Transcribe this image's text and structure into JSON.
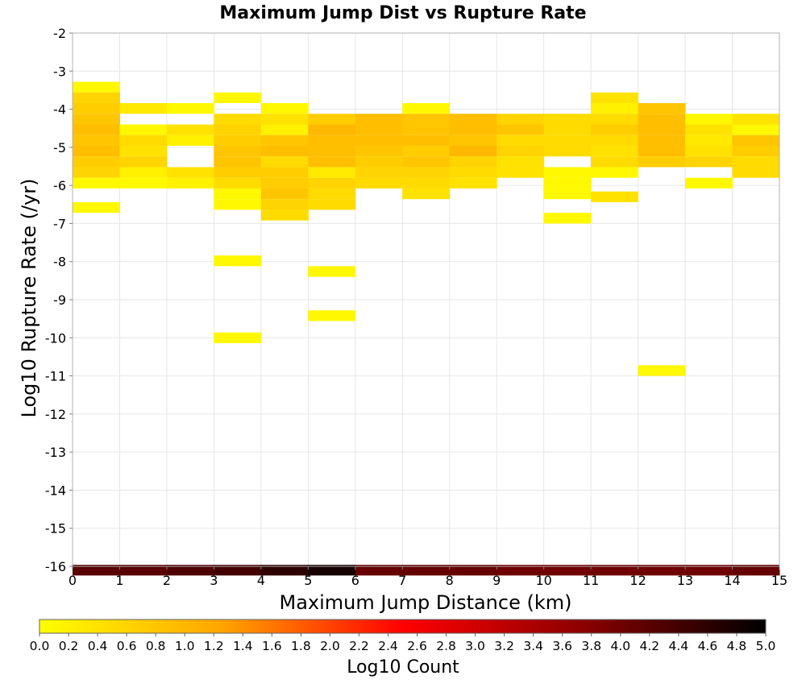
{
  "chart_data": {
    "type": "heatmap",
    "title": "Maximum Jump Dist vs Rupture Rate",
    "xlabel": "Maximum Jump Distance (km)",
    "ylabel": "Log10 Rupture Rate (/yr)",
    "xlim": [
      0,
      15
    ],
    "ylim": [
      -16,
      -2
    ],
    "x_ticks": [
      "0",
      "1",
      "2",
      "3",
      "4",
      "5",
      "6",
      "7",
      "8",
      "9",
      "10",
      "11",
      "12",
      "13",
      "14",
      "15"
    ],
    "y_ticks": [
      "-2",
      "-3",
      "-4",
      "-5",
      "-6",
      "-7",
      "-8",
      "-9",
      "-10",
      "-11",
      "-12",
      "-13",
      "-14",
      "-15",
      "-16"
    ],
    "grid": true,
    "bin_width_x": 1,
    "bin_height_y": 0.28,
    "colorbar": {
      "label": "Log10 Count",
      "range": [
        0.0,
        5.0
      ],
      "ticks": [
        "0.0",
        "0.2",
        "0.4",
        "0.6",
        "0.8",
        "1.0",
        "1.2",
        "1.4",
        "1.6",
        "1.8",
        "2.0",
        "2.2",
        "2.4",
        "2.6",
        "2.8",
        "3.0",
        "3.2",
        "3.4",
        "3.6",
        "3.8",
        "4.0",
        "4.2",
        "4.4",
        "4.6",
        "4.8",
        "5.0"
      ],
      "colors": [
        "#ffff00",
        "#ffa500",
        "#ff0000",
        "#8b0000",
        "#000000"
      ]
    },
    "cells": [
      {
        "x": 0,
        "y": -3.42,
        "v": 0.1
      },
      {
        "x": 0,
        "y": -3.7,
        "v": 0.6
      },
      {
        "x": 0,
        "y": -3.98,
        "v": 0.7
      },
      {
        "x": 0,
        "y": -4.26,
        "v": 0.8
      },
      {
        "x": 0,
        "y": -4.54,
        "v": 0.9
      },
      {
        "x": 0,
        "y": -4.82,
        "v": 0.8
      },
      {
        "x": 0,
        "y": -5.1,
        "v": 0.9
      },
      {
        "x": 0,
        "y": -5.38,
        "v": 0.7
      },
      {
        "x": 0,
        "y": -5.66,
        "v": 0.6
      },
      {
        "x": 0,
        "y": -5.94,
        "v": 0.1
      },
      {
        "x": 0,
        "y": -6.58,
        "v": 0.1
      },
      {
        "x": 1,
        "y": -3.98,
        "v": 0.3
      },
      {
        "x": 1,
        "y": -4.54,
        "v": 0.1
      },
      {
        "x": 1,
        "y": -4.82,
        "v": 0.5
      },
      {
        "x": 1,
        "y": -5.1,
        "v": 0.4
      },
      {
        "x": 1,
        "y": -5.38,
        "v": 0.6
      },
      {
        "x": 1,
        "y": -5.66,
        "v": 0.2
      },
      {
        "x": 1,
        "y": -5.94,
        "v": 0.1
      },
      {
        "x": 2,
        "y": -3.98,
        "v": 0.1
      },
      {
        "x": 2,
        "y": -4.54,
        "v": 0.4
      },
      {
        "x": 2,
        "y": -4.82,
        "v": 0.2
      },
      {
        "x": 2,
        "y": -5.66,
        "v": 0.4
      },
      {
        "x": 2,
        "y": -5.94,
        "v": 0.2
      },
      {
        "x": 3,
        "y": -3.7,
        "v": 0.1
      },
      {
        "x": 3,
        "y": -4.26,
        "v": 0.5
      },
      {
        "x": 3,
        "y": -4.54,
        "v": 0.6
      },
      {
        "x": 3,
        "y": -4.82,
        "v": 0.7
      },
      {
        "x": 3,
        "y": -5.1,
        "v": 0.8
      },
      {
        "x": 3,
        "y": -5.38,
        "v": 0.8
      },
      {
        "x": 3,
        "y": -5.66,
        "v": 0.7
      },
      {
        "x": 3,
        "y": -5.94,
        "v": 0.5
      },
      {
        "x": 3,
        "y": -6.22,
        "v": 0.1
      },
      {
        "x": 3,
        "y": -6.5,
        "v": 0.1
      },
      {
        "x": 3,
        "y": -7.98,
        "v": 0.1
      },
      {
        "x": 3,
        "y": -10.0,
        "v": 0.1
      },
      {
        "x": 4,
        "y": -3.98,
        "v": 0.1
      },
      {
        "x": 4,
        "y": -4.26,
        "v": 0.4
      },
      {
        "x": 4,
        "y": -4.54,
        "v": 0.2
      },
      {
        "x": 4,
        "y": -4.82,
        "v": 0.8
      },
      {
        "x": 4,
        "y": -5.1,
        "v": 0.9
      },
      {
        "x": 4,
        "y": -5.38,
        "v": 0.5
      },
      {
        "x": 4,
        "y": -5.66,
        "v": 0.7
      },
      {
        "x": 4,
        "y": -5.94,
        "v": 0.7
      },
      {
        "x": 4,
        "y": -6.22,
        "v": 0.8
      },
      {
        "x": 4,
        "y": -6.5,
        "v": 0.6
      },
      {
        "x": 4,
        "y": -6.78,
        "v": 0.5
      },
      {
        "x": 5,
        "y": -4.26,
        "v": 0.7
      },
      {
        "x": 5,
        "y": -4.54,
        "v": 1.0
      },
      {
        "x": 5,
        "y": -4.82,
        "v": 0.9
      },
      {
        "x": 5,
        "y": -5.1,
        "v": 0.9
      },
      {
        "x": 5,
        "y": -5.38,
        "v": 0.9
      },
      {
        "x": 5,
        "y": -5.66,
        "v": 0.3
      },
      {
        "x": 5,
        "y": -5.94,
        "v": 0.6
      },
      {
        "x": 5,
        "y": -6.22,
        "v": 0.5
      },
      {
        "x": 5,
        "y": -6.5,
        "v": 0.5
      },
      {
        "x": 5,
        "y": -8.26,
        "v": 0.1
      },
      {
        "x": 5,
        "y": -9.42,
        "v": 0.1
      },
      {
        "x": 6,
        "y": -4.26,
        "v": 0.9
      },
      {
        "x": 6,
        "y": -4.54,
        "v": 0.9
      },
      {
        "x": 6,
        "y": -4.82,
        "v": 0.9
      },
      {
        "x": 6,
        "y": -5.1,
        "v": 0.8
      },
      {
        "x": 6,
        "y": -5.38,
        "v": 0.7
      },
      {
        "x": 6,
        "y": -5.66,
        "v": 0.6
      },
      {
        "x": 6,
        "y": -5.94,
        "v": 0.5
      },
      {
        "x": 7,
        "y": -3.98,
        "v": 0.1
      },
      {
        "x": 7,
        "y": -4.26,
        "v": 0.8
      },
      {
        "x": 7,
        "y": -4.54,
        "v": 0.8
      },
      {
        "x": 7,
        "y": -4.82,
        "v": 0.9
      },
      {
        "x": 7,
        "y": -5.1,
        "v": 0.7
      },
      {
        "x": 7,
        "y": -5.38,
        "v": 0.8
      },
      {
        "x": 7,
        "y": -5.66,
        "v": 0.6
      },
      {
        "x": 7,
        "y": -5.94,
        "v": 0.5
      },
      {
        "x": 7,
        "y": -6.22,
        "v": 0.4
      },
      {
        "x": 8,
        "y": -4.26,
        "v": 0.9
      },
      {
        "x": 8,
        "y": -4.54,
        "v": 0.9
      },
      {
        "x": 8,
        "y": -4.82,
        "v": 0.8
      },
      {
        "x": 8,
        "y": -5.1,
        "v": 1.0
      },
      {
        "x": 8,
        "y": -5.38,
        "v": 0.6
      },
      {
        "x": 8,
        "y": -5.66,
        "v": 0.5
      },
      {
        "x": 8,
        "y": -5.94,
        "v": 0.4
      },
      {
        "x": 9,
        "y": -4.26,
        "v": 0.6
      },
      {
        "x": 9,
        "y": -4.54,
        "v": 0.8
      },
      {
        "x": 9,
        "y": -4.82,
        "v": 0.5
      },
      {
        "x": 9,
        "y": -5.1,
        "v": 0.6
      },
      {
        "x": 9,
        "y": -5.38,
        "v": 0.4
      },
      {
        "x": 9,
        "y": -5.66,
        "v": 0.4
      },
      {
        "x": 10,
        "y": -4.26,
        "v": 0.5
      },
      {
        "x": 10,
        "y": -4.54,
        "v": 0.5
      },
      {
        "x": 10,
        "y": -4.82,
        "v": 0.5
      },
      {
        "x": 10,
        "y": -5.1,
        "v": 0.5
      },
      {
        "x": 10,
        "y": -5.66,
        "v": 0.1
      },
      {
        "x": 10,
        "y": -5.94,
        "v": 0.1
      },
      {
        "x": 10,
        "y": -6.22,
        "v": 0.1
      },
      {
        "x": 10,
        "y": -6.86,
        "v": 0.1
      },
      {
        "x": 11,
        "y": -3.7,
        "v": 0.4
      },
      {
        "x": 11,
        "y": -3.98,
        "v": 0.2
      },
      {
        "x": 11,
        "y": -4.26,
        "v": 0.5
      },
      {
        "x": 11,
        "y": -4.54,
        "v": 0.7
      },
      {
        "x": 11,
        "y": -4.82,
        "v": 0.5
      },
      {
        "x": 11,
        "y": -5.1,
        "v": 0.4
      },
      {
        "x": 11,
        "y": -5.38,
        "v": 0.5
      },
      {
        "x": 11,
        "y": -5.66,
        "v": 0.1
      },
      {
        "x": 11,
        "y": -6.3,
        "v": 0.4
      },
      {
        "x": 12,
        "y": -3.98,
        "v": 0.8
      },
      {
        "x": 12,
        "y": -4.26,
        "v": 0.9
      },
      {
        "x": 12,
        "y": -4.54,
        "v": 0.9
      },
      {
        "x": 12,
        "y": -4.82,
        "v": 0.9
      },
      {
        "x": 12,
        "y": -5.1,
        "v": 0.9
      },
      {
        "x": 12,
        "y": -5.38,
        "v": 0.7
      },
      {
        "x": 12,
        "y": -10.86,
        "v": 0.1
      },
      {
        "x": 13,
        "y": -4.26,
        "v": 0.1
      },
      {
        "x": 13,
        "y": -4.54,
        "v": 0.4
      },
      {
        "x": 13,
        "y": -4.82,
        "v": 0.3
      },
      {
        "x": 13,
        "y": -5.1,
        "v": 0.4
      },
      {
        "x": 13,
        "y": -5.38,
        "v": 0.6
      },
      {
        "x": 13,
        "y": -5.94,
        "v": 0.1
      },
      {
        "x": 14,
        "y": -4.26,
        "v": 0.4
      },
      {
        "x": 14,
        "y": -4.54,
        "v": 0.1
      },
      {
        "x": 14,
        "y": -4.82,
        "v": 0.8
      },
      {
        "x": 14,
        "y": -5.1,
        "v": 0.7
      },
      {
        "x": 14,
        "y": -5.38,
        "v": 0.5
      },
      {
        "x": 14,
        "y": -5.66,
        "v": 0.5
      },
      {
        "x": 0,
        "y": -16.1,
        "v": 4.2
      },
      {
        "x": 1,
        "y": -16.1,
        "v": 4.2
      },
      {
        "x": 2,
        "y": -16.1,
        "v": 4.3
      },
      {
        "x": 3,
        "y": -16.1,
        "v": 4.4
      },
      {
        "x": 4,
        "y": -16.1,
        "v": 4.6
      },
      {
        "x": 5,
        "y": -16.1,
        "v": 4.8
      },
      {
        "x": 6,
        "y": -16.1,
        "v": 4.1
      },
      {
        "x": 7,
        "y": -16.1,
        "v": 4.1
      },
      {
        "x": 8,
        "y": -16.1,
        "v": 4.1
      },
      {
        "x": 9,
        "y": -16.1,
        "v": 4.0
      },
      {
        "x": 10,
        "y": -16.1,
        "v": 4.0
      },
      {
        "x": 11,
        "y": -16.1,
        "v": 4.0
      },
      {
        "x": 12,
        "y": -16.1,
        "v": 4.0
      },
      {
        "x": 13,
        "y": -16.1,
        "v": 4.0
      },
      {
        "x": 14,
        "y": -16.1,
        "v": 4.1
      }
    ]
  }
}
